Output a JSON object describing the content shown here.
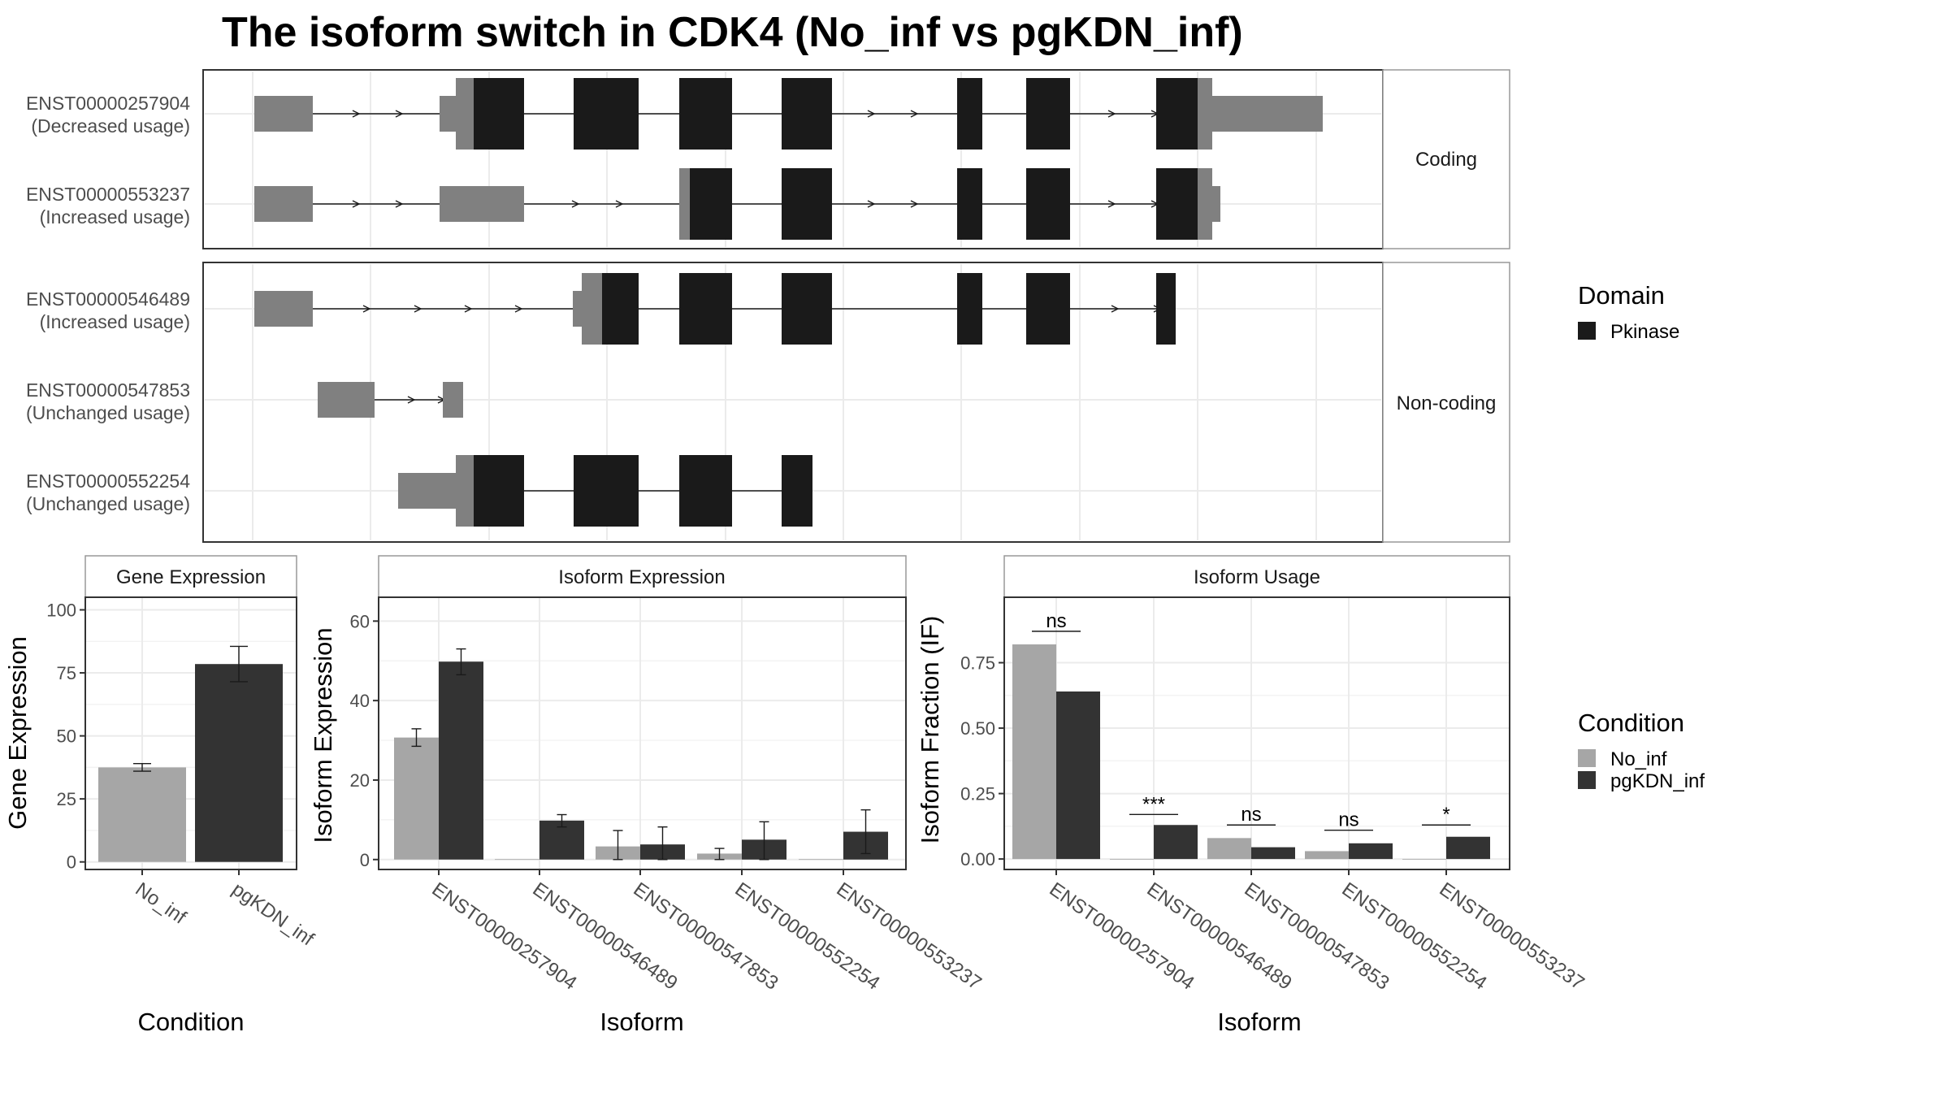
{
  "title": "The isoform switch in CDK4 (No_inf vs pgKDN_inf)",
  "colors": {
    "utr": "#808080",
    "pkinase": "#1a1a1a",
    "no_inf": "#a6a6a6",
    "pgkdn_inf": "#333333",
    "grid": "#ebebeb",
    "panel_border": "#333333",
    "strip_border": "#999999"
  },
  "structure": {
    "groups": [
      {
        "label": "Coding",
        "isoforms": [
          {
            "id": "ENST00000257904",
            "usage": "(Decreased usage)"
          },
          {
            "id": "ENST00000553237",
            "usage": "(Increased usage)"
          }
        ]
      },
      {
        "label": "Non-coding",
        "isoforms": [
          {
            "id": "ENST00000546489",
            "usage": "(Increased usage)"
          },
          {
            "id": "ENST00000547853",
            "usage": "(Unchanged usage)"
          },
          {
            "id": "ENST00000552254",
            "usage": "(Unchanged usage)"
          }
        ]
      }
    ],
    "legend": {
      "title": "Domain",
      "items": [
        {
          "label": "Pkinase",
          "color": "#1a1a1a"
        }
      ]
    }
  },
  "chart_data": [
    {
      "type": "bar",
      "title": "Gene Expression",
      "xlabel": "Condition",
      "ylabel": "Gene Expression",
      "categories": [
        "No_inf",
        "pgKDN_inf"
      ],
      "values": [
        37.5,
        78.5
      ],
      "errors": [
        [
          36,
          39
        ],
        [
          71.5,
          85.5
        ]
      ],
      "ylim": [
        -3,
        105
      ],
      "yticks": [
        0,
        25,
        50,
        75,
        100
      ],
      "yticklabels": [
        "0",
        "25",
        "50",
        "75",
        "100"
      ]
    },
    {
      "type": "bar",
      "title": "Isoform Expression",
      "xlabel": "Isoform",
      "ylabel": "Isoform Expression",
      "categories": [
        "ENST00000257904",
        "ENST00000546489",
        "ENST00000547853",
        "ENST00000552254",
        "ENST00000553237"
      ],
      "series": [
        {
          "name": "No_inf",
          "values": [
            30.7,
            0.1,
            3.3,
            1.5,
            0.1
          ],
          "errors": [
            [
              28.5,
              32.9
            ],
            null,
            [
              0,
              7.3
            ],
            [
              0,
              2.8
            ],
            null
          ]
        },
        {
          "name": "pgKDN_inf",
          "values": [
            49.8,
            9.8,
            3.8,
            5,
            7
          ],
          "errors": [
            [
              46.5,
              53
            ],
            [
              8.2,
              11.3
            ],
            [
              0,
              8.2
            ],
            [
              0,
              9.5
            ],
            [
              1.5,
              12.5
            ]
          ]
        }
      ],
      "ylim": [
        -2.5,
        66
      ],
      "yticks": [
        0,
        20,
        40,
        60
      ],
      "yticklabels": [
        "0",
        "20",
        "40",
        "60"
      ]
    },
    {
      "type": "bar",
      "title": "Isoform Usage",
      "xlabel": "Isoform",
      "ylabel": "Isoform Fraction (IF)",
      "categories": [
        "ENST00000257904",
        "ENST00000546489",
        "ENST00000547853",
        "ENST00000552254",
        "ENST00000553237"
      ],
      "series": [
        {
          "name": "No_inf",
          "values": [
            0.82,
            0,
            0.08,
            0.03,
            0
          ]
        },
        {
          "name": "pgKDN_inf",
          "values": [
            0.64,
            0.13,
            0.045,
            0.06,
            0.085
          ]
        }
      ],
      "significance": [
        "ns",
        "***",
        "ns",
        "ns",
        "*"
      ],
      "significance_y": [
        0.87,
        0.17,
        0.13,
        0.11,
        0.13
      ],
      "ylim": [
        -0.04,
        1.0
      ],
      "yticks": [
        0,
        0.25,
        0.5,
        0.75
      ],
      "yticklabels": [
        "0.00",
        "0.25",
        "0.50",
        "0.75"
      ],
      "legend": {
        "title": "Condition",
        "items": [
          "No_inf",
          "pgKDN_inf"
        ]
      }
    }
  ]
}
